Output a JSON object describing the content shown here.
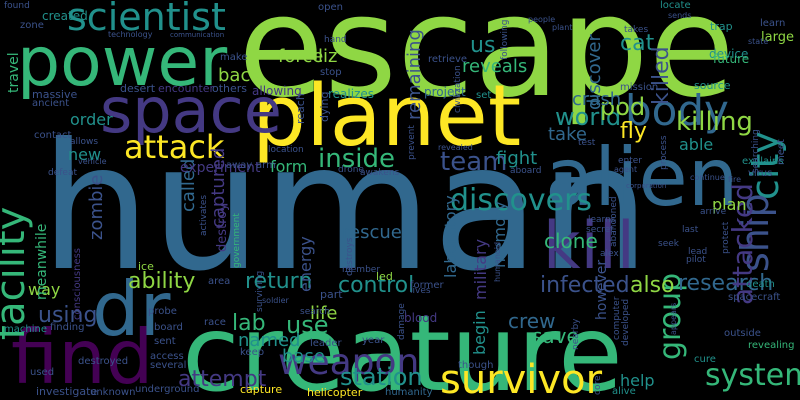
{
  "word_cloud": {
    "background": "#000000",
    "palette": "viridis",
    "words": [
      {
        "text": "human",
        "color": "#31688e"
      },
      {
        "text": "escape",
        "color": "#8fd744"
      },
      {
        "text": "creature",
        "color": "#35b779"
      },
      {
        "text": "alien",
        "color": "#31688e"
      },
      {
        "text": "kill",
        "color": "#443983"
      },
      {
        "text": "planet",
        "color": "#fde725"
      },
      {
        "text": "power",
        "color": "#35b779"
      },
      {
        "text": "space",
        "color": "#443983"
      },
      {
        "text": "find",
        "color": "#440154"
      },
      {
        "text": "dr",
        "color": "#31688e"
      },
      {
        "text": "scientist",
        "color": "#21918c"
      },
      {
        "text": "survivor",
        "color": "#fde725"
      },
      {
        "text": "attack",
        "color": "#fde725"
      },
      {
        "text": "body",
        "color": "#31688e"
      },
      {
        "text": "facility",
        "color": "#35b779"
      },
      {
        "text": "city",
        "color": "#21918c"
      },
      {
        "text": "ship",
        "color": "#3b528b"
      },
      {
        "text": "weapon",
        "color": "#443983"
      },
      {
        "text": "discovers",
        "color": "#21918c"
      },
      {
        "text": "inside",
        "color": "#35b779"
      },
      {
        "text": "team",
        "color": "#3b528b"
      },
      {
        "text": "system",
        "color": "#35b779"
      },
      {
        "text": "group",
        "color": "#35b779"
      },
      {
        "text": "research",
        "color": "#31688e"
      },
      {
        "text": "station",
        "color": "#21918c"
      },
      {
        "text": "attempt",
        "color": "#443983"
      },
      {
        "text": "world",
        "color": "#21918c"
      },
      {
        "text": "pod",
        "color": "#8fd744"
      },
      {
        "text": "crash",
        "color": "#31688e"
      },
      {
        "text": "killing",
        "color": "#8fd744"
      },
      {
        "text": "fly",
        "color": "#fde725"
      },
      {
        "text": "us",
        "color": "#21918c"
      },
      {
        "text": "cat",
        "color": "#21918c"
      },
      {
        "text": "killed",
        "color": "#3b528b"
      },
      {
        "text": "attacked",
        "color": "#443983"
      },
      {
        "text": "ability",
        "color": "#8fd744"
      },
      {
        "text": "control",
        "color": "#21918c"
      },
      {
        "text": "infected",
        "color": "#3b528b"
      },
      {
        "text": "also",
        "color": "#8fd744"
      },
      {
        "text": "lab",
        "color": "#35b779"
      },
      {
        "text": "use",
        "color": "#35b779"
      },
      {
        "text": "using",
        "color": "#3b528b"
      },
      {
        "text": "zombie",
        "color": "#3b528b"
      },
      {
        "text": "called",
        "color": "#31688e"
      },
      {
        "text": "captured",
        "color": "#443983"
      },
      {
        "text": "return",
        "color": "#21918c"
      },
      {
        "text": "form",
        "color": "#35b779"
      },
      {
        "text": "life",
        "color": "#8fd744"
      },
      {
        "text": "fight",
        "color": "#21918c"
      },
      {
        "text": "rescue",
        "color": "#31688e"
      },
      {
        "text": "clone",
        "color": "#35b779"
      },
      {
        "text": "crew",
        "color": "#31688e"
      },
      {
        "text": "save",
        "color": "#35b779"
      },
      {
        "text": "named",
        "color": "#21918c"
      },
      {
        "text": "base",
        "color": "#21918c"
      },
      {
        "text": "help",
        "color": "#21918c"
      },
      {
        "text": "back",
        "color": "#8fd744"
      },
      {
        "text": "force",
        "color": "#8fd744"
      },
      {
        "text": "liz",
        "color": "#8fd744"
      },
      {
        "text": "reveals",
        "color": "#35b779"
      },
      {
        "text": "remaining",
        "color": "#3b528b"
      },
      {
        "text": "discover",
        "color": "#31688e"
      },
      {
        "text": "take",
        "color": "#31688e"
      },
      {
        "text": "order",
        "color": "#21918c"
      },
      {
        "text": "new",
        "color": "#21918c"
      },
      {
        "text": "travel",
        "color": "#35b779"
      },
      {
        "text": "created",
        "color": "#21918c"
      },
      {
        "text": "energy",
        "color": "#3b528b"
      },
      {
        "text": "laboratory",
        "color": "#31688e"
      },
      {
        "text": "military",
        "color": "#443983"
      },
      {
        "text": "memory",
        "color": "#31688e"
      },
      {
        "text": "begin",
        "color": "#21918c"
      },
      {
        "text": "plan",
        "color": "#8fd744"
      },
      {
        "text": "however",
        "color": "#3b528b"
      },
      {
        "text": "able",
        "color": "#21918c"
      },
      {
        "text": "way",
        "color": "#8fd744"
      },
      {
        "text": "meanwhile",
        "color": "#35b779"
      },
      {
        "text": "destroy",
        "color": "#443983"
      },
      {
        "text": "experiment",
        "color": "#443983"
      },
      {
        "text": "desert",
        "color": "#3b528b"
      },
      {
        "text": "encounter",
        "color": "#443983"
      },
      {
        "text": "others",
        "color": "#3b528b"
      },
      {
        "text": "allowing",
        "color": "#443983"
      },
      {
        "text": "realizes",
        "color": "#21918c"
      },
      {
        "text": "project",
        "color": "#31688e"
      },
      {
        "text": "massive",
        "color": "#3b528b"
      },
      {
        "text": "ancient",
        "color": "#3b528b"
      },
      {
        "text": "contact",
        "color": "#3b528b"
      },
      {
        "text": "allows",
        "color": "#3b528b"
      },
      {
        "text": "vehicle",
        "color": "#3b528b"
      },
      {
        "text": "defeat",
        "color": "#3b528b"
      },
      {
        "text": "consciousness",
        "color": "#443983"
      },
      {
        "text": "machine",
        "color": "#21918c"
      },
      {
        "text": "destroyed",
        "color": "#3b528b"
      },
      {
        "text": "investigate",
        "color": "#3b528b"
      },
      {
        "text": "unknown",
        "color": "#3b528b"
      },
      {
        "text": "underground",
        "color": "#3b528b"
      },
      {
        "text": "capture",
        "color": "#fde725"
      },
      {
        "text": "helicopter",
        "color": "#fde725"
      },
      {
        "text": "humanity",
        "color": "#31688e"
      },
      {
        "text": "though",
        "color": "#3b528b"
      },
      {
        "text": "alive",
        "color": "#21918c"
      },
      {
        "text": "outside",
        "color": "#3b528b"
      },
      {
        "text": "revealing",
        "color": "#35b779"
      },
      {
        "text": "cure",
        "color": "#21918c"
      },
      {
        "text": "death",
        "color": "#21918c"
      },
      {
        "text": "spacecraft",
        "color": "#3b528b"
      },
      {
        "text": "explains",
        "color": "#21918c"
      },
      {
        "text": "virus",
        "color": "#3b528b"
      },
      {
        "text": "searching",
        "color": "#3b528b"
      },
      {
        "text": "meet",
        "color": "#3b528b"
      },
      {
        "text": "device",
        "color": "#21918c"
      },
      {
        "text": "future",
        "color": "#35b779"
      },
      {
        "text": "source",
        "color": "#21918c"
      },
      {
        "text": "mission",
        "color": "#3b528b"
      },
      {
        "text": "large",
        "color": "#8fd744"
      },
      {
        "text": "learn",
        "color": "#3b528b"
      },
      {
        "text": "trap",
        "color": "#21918c"
      },
      {
        "text": "locate",
        "color": "#21918c"
      },
      {
        "text": "sends",
        "color": "#3b528b"
      },
      {
        "text": "takes",
        "color": "#3b528b"
      },
      {
        "text": "plant",
        "color": "#3b528b"
      },
      {
        "text": "people",
        "color": "#3b528b"
      },
      {
        "text": "civilization",
        "color": "#3b528b"
      },
      {
        "text": "retrieve",
        "color": "#3b528b"
      },
      {
        "text": "following",
        "color": "#3b528b"
      },
      {
        "text": "set",
        "color": "#21918c"
      },
      {
        "text": "open",
        "color": "#3b528b"
      },
      {
        "text": "hand",
        "color": "#3b528b"
      },
      {
        "text": "stop",
        "color": "#3b528b"
      },
      {
        "text": "make",
        "color": "#3b528b"
      },
      {
        "text": "technology",
        "color": "#3b528b"
      },
      {
        "text": "zone",
        "color": "#3b528b"
      },
      {
        "text": "found",
        "color": "#3b528b"
      },
      {
        "text": "reach",
        "color": "#3b528b"
      },
      {
        "text": "dying",
        "color": "#3b528b"
      },
      {
        "text": "location",
        "color": "#3b528b"
      },
      {
        "text": "awakens",
        "color": "#3b528b"
      },
      {
        "text": "drone",
        "color": "#3b528b"
      },
      {
        "text": "arm",
        "color": "#3b528b"
      },
      {
        "text": "away",
        "color": "#3b528b"
      },
      {
        "text": "activates",
        "color": "#3b528b"
      },
      {
        "text": "government",
        "color": "#35b779"
      },
      {
        "text": "ice",
        "color": "#8fd744"
      },
      {
        "text": "area",
        "color": "#3b528b"
      },
      {
        "text": "soldier",
        "color": "#3b528b"
      },
      {
        "text": "surviving",
        "color": "#3b528b"
      },
      {
        "text": "destroys",
        "color": "#3b528b"
      },
      {
        "text": "member",
        "color": "#3b528b"
      },
      {
        "text": "led",
        "color": "#8fd744"
      },
      {
        "text": "former",
        "color": "#3b528b"
      },
      {
        "text": "lives",
        "color": "#3b528b"
      },
      {
        "text": "part",
        "color": "#3b528b"
      },
      {
        "text": "search",
        "color": "#3b528b"
      },
      {
        "text": "leader",
        "color": "#3b528b"
      },
      {
        "text": "blood",
        "color": "#443983"
      },
      {
        "text": "damage",
        "color": "#3b528b"
      },
      {
        "text": "year",
        "color": "#3b528b"
      },
      {
        "text": "race",
        "color": "#3b528b"
      },
      {
        "text": "keep",
        "color": "#3b528b"
      },
      {
        "text": "sent",
        "color": "#3b528b"
      },
      {
        "text": "access",
        "color": "#3b528b"
      },
      {
        "text": "several",
        "color": "#3b528b"
      },
      {
        "text": "board",
        "color": "#3b528b"
      },
      {
        "text": "probe",
        "color": "#3b528b"
      },
      {
        "text": "used",
        "color": "#3b528b"
      },
      {
        "text": "finding",
        "color": "#3b528b"
      },
      {
        "text": "computer",
        "color": "#3b528b"
      },
      {
        "text": "developed",
        "color": "#3b528b"
      },
      {
        "text": "core",
        "color": "#3b528b"
      },
      {
        "text": "nearby",
        "color": "#3b528b"
      },
      {
        "text": "learns",
        "color": "#3b528b"
      },
      {
        "text": "secret",
        "color": "#3b528b"
      },
      {
        "text": "abandoned",
        "color": "#3b528b"
      },
      {
        "text": "alex",
        "color": "#3b528b"
      },
      {
        "text": "last",
        "color": "#3b528b"
      },
      {
        "text": "lead",
        "color": "#3b528b"
      },
      {
        "text": "pilot",
        "color": "#3b528b"
      },
      {
        "text": "seek",
        "color": "#3b528b"
      },
      {
        "text": "arrive",
        "color": "#3b528b"
      },
      {
        "text": "protect",
        "color": "#3b528b"
      },
      {
        "text": "enter",
        "color": "#3b528b"
      },
      {
        "text": "agent",
        "color": "#3b528b"
      },
      {
        "text": "process",
        "color": "#3b528b"
      },
      {
        "text": "test",
        "color": "#3b528b"
      },
      {
        "text": "aboard",
        "color": "#3b528b"
      },
      {
        "text": "revealed",
        "color": "#3b528b"
      },
      {
        "text": "prevent",
        "color": "#3b528b"
      },
      {
        "text": "humanoid",
        "color": "#3b528b"
      },
      {
        "text": "communication",
        "color": "#3b528b"
      },
      {
        "text": "corporation",
        "color": "#3b528b"
      },
      {
        "text": "appears",
        "color": "#3b528b"
      },
      {
        "text": "continue",
        "color": "#3b528b"
      },
      {
        "text": "fire",
        "color": "#3b528b"
      },
      {
        "text": "state",
        "color": "#3b528b"
      }
    ]
  }
}
